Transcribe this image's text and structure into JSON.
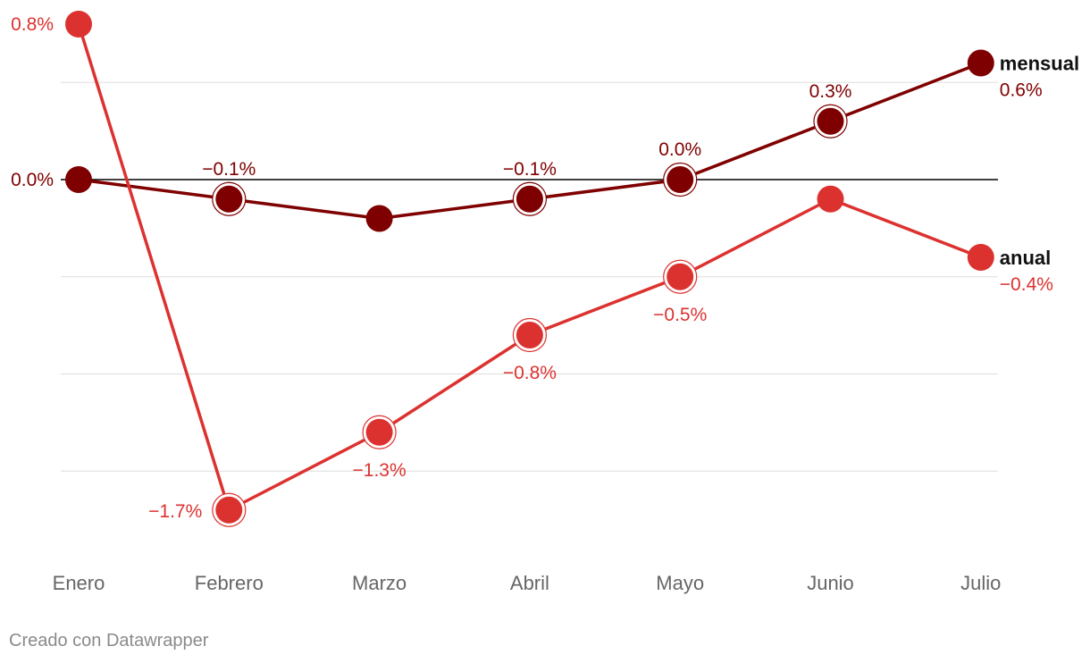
{
  "chart_data": {
    "type": "line",
    "categories": [
      "Enero",
      "Febrero",
      "Marzo",
      "Abril",
      "Mayo",
      "Junio",
      "Julio"
    ],
    "ylim": [
      -1.9,
      0.8
    ],
    "gridlines": [
      0.5,
      0.0,
      -0.5,
      -1.0,
      -1.5
    ],
    "series": [
      {
        "name": "mensual",
        "color": "#7f0000",
        "values": [
          0.0,
          -0.1,
          -0.2,
          -0.1,
          0.0,
          0.3,
          0.6
        ],
        "labels": [
          "0.0%",
          "−0.1%",
          "",
          "−0.1%",
          "0.0%",
          "0.3%",
          "0.6%"
        ],
        "ringed": [
          false,
          true,
          false,
          true,
          true,
          true,
          false
        ]
      },
      {
        "name": "anual",
        "color": "#dc322f",
        "values": [
          0.8,
          -1.7,
          -1.3,
          -0.8,
          -0.5,
          -0.1,
          -0.4
        ],
        "labels": [
          "0.8%",
          "−1.7%",
          "−1.3%",
          "−0.8%",
          "−0.5%",
          "",
          "−0.4%"
        ],
        "ringed": [
          false,
          true,
          true,
          true,
          true,
          false,
          false
        ]
      }
    ]
  },
  "credit": "Creado con Datawrapper"
}
